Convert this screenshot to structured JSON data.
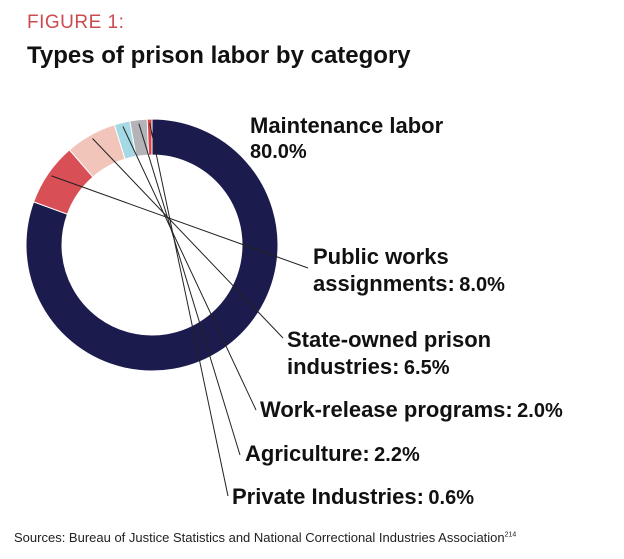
{
  "figure_label": "FIGURE 1:",
  "title": "Types of prison labor by category",
  "sources": {
    "text": "Sources: Bureau of Justice Statistics and National Correctional Industries Association",
    "footnote": "214"
  },
  "chart_data": {
    "type": "pie",
    "style": "donut",
    "title": "Types of prison labor by category",
    "slices": [
      {
        "name": "Maintenance labor",
        "value": 80.0,
        "label_value": "80.0%",
        "color": "#1c1b4e"
      },
      {
        "name": "Public works assignments",
        "value": 8.0,
        "label_value": "8.0%",
        "color": "#d84f56"
      },
      {
        "name": "State-owned prison industries",
        "value": 6.5,
        "label_value": "6.5%",
        "color": "#f2c5bb"
      },
      {
        "name": "Work-release programs",
        "value": 2.0,
        "label_value": "2.0%",
        "color": "#a6d9e6"
      },
      {
        "name": "Agriculture",
        "value": 2.2,
        "label_value": "2.2%",
        "color": "#b3b3b8"
      },
      {
        "name": "Private Industries",
        "value": 0.6,
        "label_value": "0.6%",
        "color": "#d9454d"
      }
    ],
    "labels": [
      {
        "line1": "Maintenance labor",
        "line2": "80.0%"
      },
      {
        "line1": "Public works",
        "line2": "assignments:",
        "value": "8.0%"
      },
      {
        "line1": "State-owned prison",
        "line2": "industries:",
        "value": "6.5%"
      },
      {
        "line1": "Work-release programs:",
        "value": "2.0%"
      },
      {
        "line1": "Agriculture:",
        "value": "2.2%"
      },
      {
        "line1": "Private Industries:",
        "value": "0.6%"
      }
    ]
  }
}
